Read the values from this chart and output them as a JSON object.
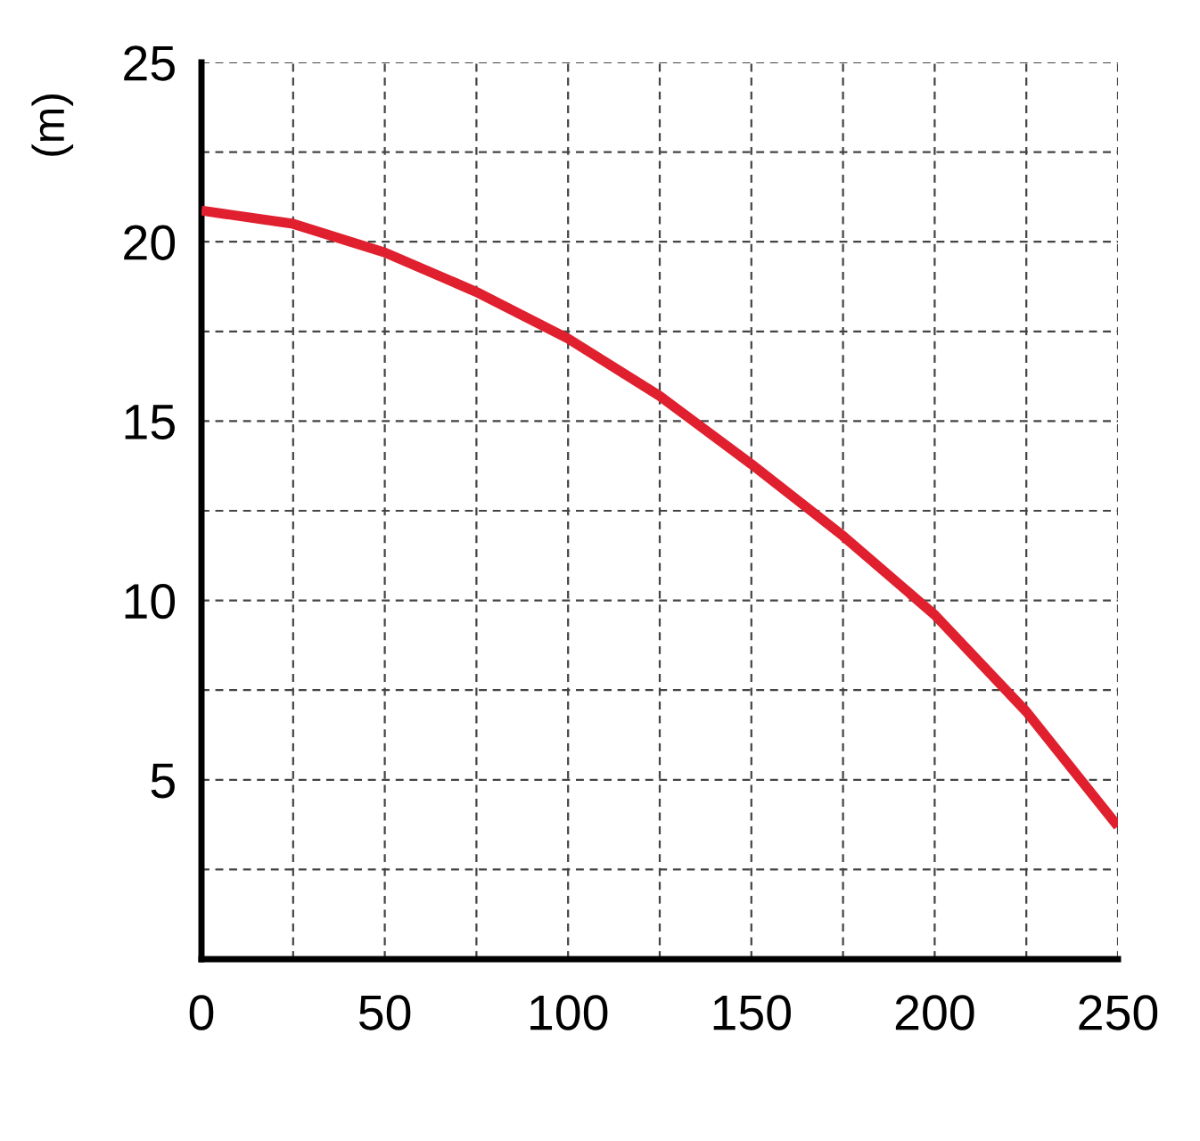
{
  "chart_data": {
    "type": "line",
    "ylabel": "(m)",
    "x": [
      0,
      25,
      50,
      75,
      100,
      125,
      150,
      175,
      200,
      225,
      250
    ],
    "series": [
      {
        "color": "#e0202e",
        "values": [
          20.87,
          20.5,
          19.7,
          18.6,
          17.3,
          15.7,
          13.8,
          11.8,
          9.6,
          6.9,
          3.7
        ]
      }
    ],
    "xlim": [
      0,
      250
    ],
    "ylim": [
      0,
      25
    ],
    "xticks": [
      0,
      {
        "value": 25,
        "label": null
      },
      50,
      {
        "value": 75,
        "label": null
      },
      100,
      {
        "value": 125,
        "label": null
      },
      150,
      {
        "value": 175,
        "label": null
      },
      200,
      {
        "value": 225,
        "label": null
      },
      250
    ],
    "yticks": [
      {
        "value": 0,
        "label": null
      },
      {
        "value": 2.5,
        "label": null
      },
      5,
      {
        "value": 7.5,
        "label": null
      },
      10,
      {
        "value": 12.5,
        "label": null
      },
      15,
      {
        "value": 17.5,
        "label": null
      },
      20,
      {
        "value": 22.5,
        "label": null
      },
      25
    ],
    "grid": true,
    "marker": "none",
    "line_style": "solid",
    "legend": false
  }
}
